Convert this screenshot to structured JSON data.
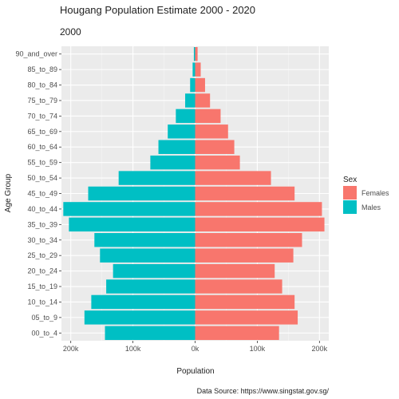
{
  "chart_data": {
    "type": "bar",
    "orientation": "horizontal-diverging",
    "title": "Hougang Population Estimate 2000 - 2020",
    "subtitle": "2000",
    "xlabel": "Population",
    "ylabel": "Age Group",
    "caption": "Data Source: https://www.singstat.gov.sg/",
    "x_ticks": [
      -200000,
      -100000,
      0,
      100000,
      200000
    ],
    "x_tick_labels": [
      "200k",
      "100k",
      "0k",
      "100k",
      "200k"
    ],
    "xlim": [
      -215000,
      215000
    ],
    "grid": true,
    "legend": {
      "title": "Sex",
      "position": "right"
    },
    "categories": [
      "00_to_4",
      "05_to_9",
      "10_to_14",
      "15_to_19",
      "20_to_24",
      "25_to_29",
      "30_to_34",
      "35_to_39",
      "40_to_44",
      "45_to_49",
      "50_to_54",
      "55_to_59",
      "60_to_64",
      "65_to_69",
      "70_to_74",
      "75_to_79",
      "80_to_84",
      "85_to_89",
      "90_and_over"
    ],
    "series": [
      {
        "name": "Females",
        "color": "#F8766D",
        "side": "right",
        "values": [
          135000,
          165000,
          160000,
          140000,
          128000,
          158000,
          172000,
          208000,
          204000,
          160000,
          122000,
          72000,
          63000,
          53000,
          41000,
          24000,
          16000,
          9000,
          4000
        ]
      },
      {
        "name": "Males",
        "color": "#00BFC4",
        "side": "left",
        "values": [
          145000,
          178000,
          167000,
          143000,
          132000,
          153000,
          162000,
          203000,
          212000,
          172000,
          123000,
          72000,
          59000,
          44000,
          31000,
          16000,
          8000,
          4000,
          2000
        ]
      }
    ]
  }
}
